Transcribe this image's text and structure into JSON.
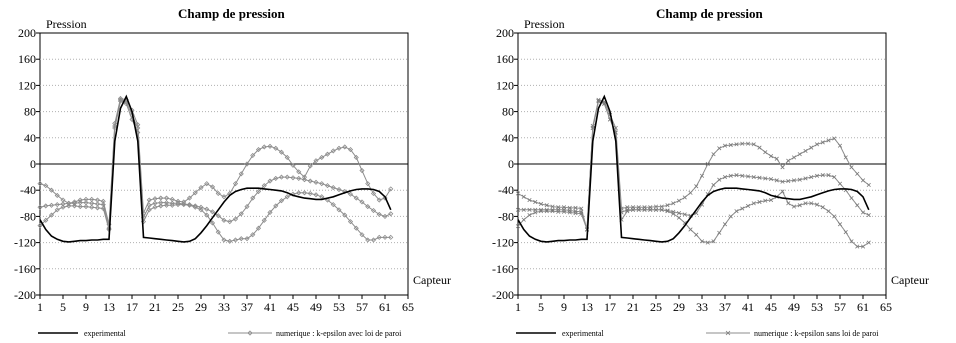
{
  "chart_data": [
    {
      "type": "line",
      "title": "Champ de pression",
      "ylabel": "Pression",
      "xlabel": "Capteur",
      "xlim": [
        1,
        65
      ],
      "ylim": [
        -200,
        200
      ],
      "xticks": [
        "1",
        "5",
        "9",
        "13",
        "17",
        "21",
        "25",
        "29",
        "33",
        "37",
        "41",
        "45",
        "49",
        "53",
        "57",
        "61",
        "65"
      ],
      "yticks": [
        "200",
        "160",
        "120",
        "80",
        "40",
        "0",
        "-40",
        "-80",
        "-120",
        "-160",
        "-200"
      ],
      "grid": "horizontal",
      "legend": "bottom",
      "legend_entries": [
        "experimental",
        "numerique : k-epsilon avec loi de paroi"
      ],
      "series": [
        {
          "name": "experimental",
          "style": "black-line",
          "x": [
            1,
            2,
            3,
            4,
            5,
            6,
            7,
            8,
            9,
            10,
            11,
            12,
            13,
            14,
            15,
            16,
            17,
            18,
            19,
            20,
            21,
            22,
            23,
            24,
            25,
            26,
            27,
            28,
            29,
            30,
            31,
            32,
            33,
            34,
            35,
            36,
            37,
            38,
            39,
            40,
            41,
            42,
            43,
            44,
            45,
            46,
            47,
            48,
            49,
            50,
            51,
            52,
            53,
            54,
            55,
            56,
            57,
            58,
            59,
            60,
            61,
            62
          ],
          "y": [
            -85,
            -100,
            -110,
            -115,
            -118,
            -119,
            -118,
            -117,
            -117,
            -116,
            -116,
            -115,
            -115,
            35,
            85,
            103,
            80,
            35,
            -112,
            -113,
            -114,
            -115,
            -116,
            -117,
            -118,
            -119,
            -118,
            -114,
            -105,
            -94,
            -82,
            -70,
            -58,
            -48,
            -42,
            -39,
            -37,
            -37,
            -37,
            -38,
            -39,
            -40,
            -41,
            -44,
            -48,
            -50,
            -52,
            -53,
            -54,
            -54,
            -52,
            -50,
            -47,
            -44,
            -41,
            -39,
            -38,
            -38,
            -39,
            -42,
            -50,
            -70
          ]
        },
        {
          "name": "numerique : k-epsilon avec loi de paroi",
          "style": "grey-diamond",
          "x": [
            1,
            2,
            3,
            4,
            5,
            6,
            7,
            8,
            9,
            10,
            11,
            12,
            13,
            14,
            15,
            16,
            17,
            18,
            19,
            20,
            21,
            22,
            23,
            24,
            25,
            26,
            27,
            28,
            29,
            30,
            31,
            32,
            33,
            34,
            35,
            36,
            37,
            38,
            39,
            40,
            41,
            42,
            43,
            44,
            45,
            46,
            47,
            48,
            49,
            50,
            51,
            52,
            53,
            54,
            55,
            56,
            57,
            58,
            59,
            60,
            61,
            62
          ],
          "y": [
            -66,
            -64,
            -63,
            -62,
            -61,
            -60,
            -60,
            -59,
            -59,
            -60,
            -61,
            -62,
            -98,
            58,
            98,
            95,
            75,
            55,
            -82,
            -63,
            -60,
            -59,
            -59,
            -60,
            -60,
            -61,
            -62,
            -64,
            -66,
            -69,
            -73,
            -79,
            -86,
            -88,
            -84,
            -76,
            -65,
            -52,
            -42,
            -33,
            -26,
            -22,
            -20,
            -20,
            -21,
            -22,
            -24,
            -26,
            -28,
            -30,
            -33,
            -36,
            -39,
            -42,
            -46,
            -52,
            -58,
            -65,
            -71,
            -77,
            -80,
            -76
          ]
        },
        {
          "name": "numerique : k-epsilon avec loi de paroi",
          "style": "grey-diamond",
          "x": [
            1,
            2,
            3,
            4,
            5,
            6,
            7,
            8,
            9,
            10,
            11,
            12,
            13,
            14,
            15,
            16,
            17,
            18,
            19,
            20,
            21,
            22,
            23,
            24,
            25,
            26,
            27,
            28,
            29,
            30,
            31,
            32,
            33,
            34,
            35,
            36,
            37,
            38,
            39,
            40,
            41,
            42,
            43,
            44,
            45,
            46,
            47,
            48,
            49,
            50,
            51,
            52,
            53,
            54,
            55,
            56,
            57,
            58,
            59,
            60,
            61,
            62
          ],
          "y": [
            -30,
            -33,
            -40,
            -48,
            -55,
            -60,
            -58,
            -55,
            -54,
            -54,
            -55,
            -57,
            -92,
            62,
            100,
            98,
            82,
            60,
            -75,
            -55,
            -53,
            -52,
            -52,
            -54,
            -57,
            -58,
            -52,
            -44,
            -36,
            -30,
            -35,
            -45,
            -50,
            -45,
            -30,
            -15,
            0,
            13,
            22,
            26,
            27,
            24,
            18,
            10,
            -2,
            -12,
            -20,
            -3,
            5,
            10,
            15,
            20,
            24,
            26,
            22,
            10,
            -10,
            -30,
            -45,
            -55,
            -52,
            -38
          ]
        },
        {
          "name": "numerique : k-epsilon avec loi de paroi",
          "style": "grey-diamond",
          "x": [
            1,
            2,
            3,
            4,
            5,
            6,
            7,
            8,
            9,
            10,
            11,
            12,
            13,
            14,
            15,
            16,
            17,
            18,
            19,
            20,
            21,
            22,
            23,
            24,
            25,
            26,
            27,
            28,
            29,
            30,
            31,
            32,
            33,
            34,
            35,
            36,
            37,
            38,
            39,
            40,
            41,
            42,
            43,
            44,
            45,
            46,
            47,
            48,
            49,
            50,
            51,
            52,
            53,
            54,
            55,
            56,
            57,
            58,
            59,
            60,
            61,
            62
          ],
          "y": [
            -94,
            -86,
            -78,
            -70,
            -66,
            -64,
            -64,
            -65,
            -65,
            -66,
            -67,
            -68,
            -100,
            55,
            96,
            92,
            68,
            48,
            -88,
            -70,
            -66,
            -64,
            -63,
            -63,
            -62,
            -62,
            -63,
            -66,
            -70,
            -78,
            -90,
            -104,
            -116,
            -118,
            -116,
            -114,
            -114,
            -108,
            -98,
            -86,
            -74,
            -64,
            -56,
            -50,
            -46,
            -44,
            -44,
            -45,
            -47,
            -50,
            -55,
            -62,
            -70,
            -78,
            -88,
            -98,
            -108,
            -116,
            -116,
            -112,
            -112,
            -112
          ]
        }
      ]
    },
    {
      "type": "line",
      "title": "Champ de pression",
      "ylabel": "Pression",
      "xlabel": "Capteur",
      "xlim": [
        1,
        65
      ],
      "ylim": [
        -200,
        200
      ],
      "xticks": [
        "1",
        "5",
        "9",
        "13",
        "17",
        "21",
        "25",
        "29",
        "33",
        "37",
        "41",
        "45",
        "49",
        "53",
        "57",
        "61",
        "65"
      ],
      "yticks": [
        "200",
        "160",
        "120",
        "80",
        "40",
        "0",
        "-40",
        "-80",
        "-120",
        "-160",
        "-200"
      ],
      "grid": "horizontal",
      "legend": "bottom",
      "legend_entries": [
        "experimental",
        "numerique : k-epsilon sans loi de paroi"
      ],
      "series": [
        {
          "name": "experimental",
          "style": "black-line",
          "x": [
            1,
            2,
            3,
            4,
            5,
            6,
            7,
            8,
            9,
            10,
            11,
            12,
            13,
            14,
            15,
            16,
            17,
            18,
            19,
            20,
            21,
            22,
            23,
            24,
            25,
            26,
            27,
            28,
            29,
            30,
            31,
            32,
            33,
            34,
            35,
            36,
            37,
            38,
            39,
            40,
            41,
            42,
            43,
            44,
            45,
            46,
            47,
            48,
            49,
            50,
            51,
            52,
            53,
            54,
            55,
            56,
            57,
            58,
            59,
            60,
            61,
            62
          ],
          "y": [
            -85,
            -100,
            -110,
            -115,
            -118,
            -119,
            -118,
            -117,
            -117,
            -116,
            -116,
            -115,
            -115,
            35,
            85,
            103,
            80,
            35,
            -112,
            -113,
            -114,
            -115,
            -116,
            -117,
            -118,
            -119,
            -118,
            -114,
            -105,
            -94,
            -82,
            -70,
            -58,
            -48,
            -42,
            -39,
            -37,
            -37,
            -37,
            -38,
            -39,
            -40,
            -41,
            -44,
            -48,
            -50,
            -52,
            -53,
            -54,
            -54,
            -52,
            -50,
            -47,
            -44,
            -41,
            -39,
            -38,
            -38,
            -39,
            -42,
            -50,
            -70
          ]
        },
        {
          "name": "numerique : k-epsilon sans loi de paroi",
          "style": "grey-cross",
          "x": [
            1,
            2,
            3,
            4,
            5,
            6,
            7,
            8,
            9,
            10,
            11,
            12,
            13,
            14,
            15,
            16,
            17,
            18,
            19,
            20,
            21,
            22,
            23,
            24,
            25,
            26,
            27,
            28,
            29,
            30,
            31,
            32,
            33,
            34,
            35,
            36,
            37,
            38,
            39,
            40,
            41,
            42,
            43,
            44,
            45,
            46,
            47,
            48,
            49,
            50,
            51,
            52,
            53,
            54,
            55,
            56,
            57,
            58,
            59,
            60,
            61,
            62
          ],
          "y": [
            -45,
            -50,
            -55,
            -58,
            -61,
            -63,
            -65,
            -66,
            -66,
            -67,
            -67,
            -68,
            -100,
            58,
            98,
            95,
            75,
            55,
            -68,
            -66,
            -66,
            -66,
            -66,
            -66,
            -65,
            -65,
            -63,
            -60,
            -56,
            -51,
            -44,
            -34,
            -18,
            0,
            15,
            24,
            28,
            29,
            30,
            31,
            31,
            30,
            25,
            18,
            12,
            8,
            -5,
            5,
            10,
            15,
            20,
            25,
            30,
            33,
            36,
            39,
            28,
            10,
            -5,
            -15,
            -25,
            -32
          ]
        },
        {
          "name": "numerique : k-epsilon sans loi de paroi",
          "style": "grey-cross",
          "x": [
            1,
            2,
            3,
            4,
            5,
            6,
            7,
            8,
            9,
            10,
            11,
            12,
            13,
            14,
            15,
            16,
            17,
            18,
            19,
            20,
            21,
            22,
            23,
            24,
            25,
            26,
            27,
            28,
            29,
            30,
            31,
            32,
            33,
            34,
            35,
            36,
            37,
            38,
            39,
            40,
            41,
            42,
            43,
            44,
            45,
            46,
            47,
            48,
            49,
            50,
            51,
            52,
            53,
            54,
            55,
            56,
            57,
            58,
            59,
            60,
            61,
            62
          ],
          "y": [
            -70,
            -70,
            -70,
            -70,
            -70,
            -70,
            -70,
            -70,
            -70,
            -71,
            -72,
            -73,
            -100,
            55,
            96,
            92,
            68,
            48,
            -74,
            -70,
            -70,
            -70,
            -70,
            -70,
            -70,
            -70,
            -71,
            -73,
            -75,
            -77,
            -79,
            -75,
            -62,
            -46,
            -32,
            -24,
            -20,
            -18,
            -17,
            -18,
            -19,
            -20,
            -21,
            -22,
            -23,
            -25,
            -27,
            -26,
            -25,
            -24,
            -22,
            -20,
            -18,
            -17,
            -17,
            -20,
            -30,
            -40,
            -52,
            -63,
            -74,
            -78
          ]
        },
        {
          "name": "numerique : k-epsilon sans loi de paroi",
          "style": "grey-cross",
          "x": [
            1,
            2,
            3,
            4,
            5,
            6,
            7,
            8,
            9,
            10,
            11,
            12,
            13,
            14,
            15,
            16,
            17,
            18,
            19,
            20,
            21,
            22,
            23,
            24,
            25,
            26,
            27,
            28,
            29,
            30,
            31,
            32,
            33,
            34,
            35,
            36,
            37,
            38,
            39,
            40,
            41,
            42,
            43,
            44,
            45,
            46,
            47,
            48,
            49,
            50,
            51,
            52,
            53,
            54,
            55,
            56,
            57,
            58,
            59,
            60,
            61,
            62
          ],
          "y": [
            -95,
            -85,
            -78,
            -74,
            -72,
            -72,
            -72,
            -73,
            -73,
            -74,
            -75,
            -76,
            -100,
            55,
            96,
            92,
            68,
            48,
            -85,
            -72,
            -70,
            -70,
            -70,
            -70,
            -70,
            -70,
            -72,
            -76,
            -82,
            -90,
            -100,
            -108,
            -118,
            -120,
            -118,
            -105,
            -92,
            -80,
            -72,
            -68,
            -64,
            -60,
            -58,
            -56,
            -55,
            -50,
            -42,
            -60,
            -65,
            -63,
            -60,
            -60,
            -62,
            -66,
            -72,
            -80,
            -92,
            -104,
            -118,
            -126,
            -126,
            -120
          ]
        }
      ]
    }
  ]
}
